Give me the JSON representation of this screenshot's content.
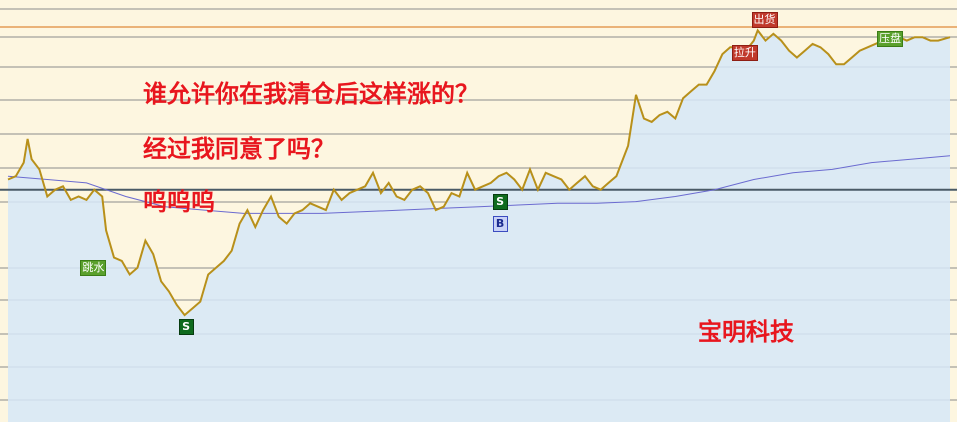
{
  "captions": {
    "line1": "谁允许你在我清仓后这样涨的？",
    "line2": "经过我同意了吗？",
    "line3": "呜呜呜",
    "watermark": "宝明科技"
  },
  "colors": {
    "background_upper": "#fdf6e0",
    "area_fill": "#d6e8f7",
    "price_line": "#b8901a",
    "avg_line": "#6b6bd0",
    "grid": "#8c8c8c",
    "ref_line": "#4a5a66",
    "top_line": "#e08a3a",
    "caption": "#e8161e"
  },
  "chart_data": {
    "type": "line",
    "title": "",
    "xlabel": "",
    "ylabel": "",
    "x_range": [
      0,
      240
    ],
    "ylim": [
      0,
      100
    ],
    "grid": true,
    "reference_level": 52,
    "series": [
      {
        "points": [
          [
            0,
            55
          ],
          [
            2,
            56
          ],
          [
            4,
            60
          ],
          [
            5,
            67
          ],
          [
            6,
            61
          ],
          [
            8,
            58
          ],
          [
            10,
            50
          ],
          [
            12,
            52
          ],
          [
            14,
            53
          ],
          [
            16,
            49
          ],
          [
            18,
            50
          ],
          [
            20,
            49
          ],
          [
            22,
            52
          ],
          [
            24,
            50
          ],
          [
            25,
            40
          ],
          [
            27,
            32
          ],
          [
            29,
            31
          ],
          [
            31,
            27
          ],
          [
            33,
            29
          ],
          [
            35,
            37
          ],
          [
            37,
            33
          ],
          [
            39,
            25
          ],
          [
            41,
            22
          ],
          [
            43,
            18
          ],
          [
            45,
            15
          ],
          [
            47,
            17
          ],
          [
            49,
            19
          ],
          [
            51,
            27
          ],
          [
            53,
            29
          ],
          [
            55,
            31
          ],
          [
            57,
            34
          ],
          [
            59,
            42
          ],
          [
            61,
            46
          ],
          [
            63,
            41
          ],
          [
            65,
            46
          ],
          [
            67,
            50
          ],
          [
            69,
            44
          ],
          [
            71,
            42
          ],
          [
            73,
            45
          ],
          [
            75,
            46
          ],
          [
            77,
            48
          ],
          [
            79,
            47
          ],
          [
            81,
            46
          ],
          [
            83,
            52
          ],
          [
            85,
            49
          ],
          [
            87,
            51
          ],
          [
            89,
            52
          ],
          [
            91,
            53
          ],
          [
            93,
            57
          ],
          [
            95,
            51
          ],
          [
            97,
            54
          ],
          [
            99,
            50
          ],
          [
            101,
            49
          ],
          [
            103,
            52
          ],
          [
            105,
            53
          ],
          [
            107,
            51
          ],
          [
            109,
            46
          ],
          [
            111,
            47
          ],
          [
            113,
            51
          ],
          [
            115,
            50
          ],
          [
            117,
            57
          ],
          [
            119,
            52
          ],
          [
            121,
            53
          ],
          [
            123,
            54
          ],
          [
            125,
            56
          ],
          [
            127,
            57
          ],
          [
            129,
            55
          ],
          [
            131,
            52
          ],
          [
            133,
            58
          ],
          [
            135,
            52
          ],
          [
            137,
            57
          ],
          [
            139,
            56
          ],
          [
            141,
            55
          ],
          [
            143,
            52
          ],
          [
            145,
            54
          ],
          [
            147,
            56
          ],
          [
            149,
            53
          ],
          [
            151,
            52
          ],
          [
            153,
            54
          ],
          [
            155,
            56
          ],
          [
            156,
            59
          ],
          [
            158,
            65
          ],
          [
            160,
            80
          ],
          [
            162,
            73
          ],
          [
            164,
            72
          ],
          [
            166,
            74
          ],
          [
            168,
            75
          ],
          [
            170,
            73
          ],
          [
            172,
            79
          ],
          [
            174,
            81
          ],
          [
            176,
            83
          ],
          [
            178,
            83
          ],
          [
            180,
            87
          ],
          [
            182,
            92
          ],
          [
            184,
            94
          ],
          [
            186,
            94
          ],
          [
            188,
            93
          ],
          [
            190,
            96
          ],
          [
            191,
            99
          ],
          [
            193,
            96
          ],
          [
            195,
            98
          ],
          [
            197,
            96
          ],
          [
            199,
            93
          ],
          [
            201,
            91
          ],
          [
            203,
            93
          ],
          [
            205,
            95
          ],
          [
            207,
            94
          ],
          [
            209,
            92
          ],
          [
            211,
            89
          ],
          [
            213,
            89
          ],
          [
            215,
            91
          ],
          [
            217,
            93
          ],
          [
            219,
            94
          ],
          [
            221,
            95
          ],
          [
            223,
            96
          ],
          [
            225,
            97
          ],
          [
            227,
            97
          ],
          [
            229,
            96
          ],
          [
            231,
            97
          ],
          [
            233,
            97
          ],
          [
            235,
            96
          ],
          [
            237,
            96
          ],
          [
            240,
            97
          ]
        ]
      },
      {
        "points": [
          [
            0,
            56
          ],
          [
            10,
            55
          ],
          [
            20,
            54
          ],
          [
            30,
            50
          ],
          [
            40,
            47
          ],
          [
            50,
            46
          ],
          [
            60,
            45
          ],
          [
            70,
            45
          ],
          [
            80,
            45
          ],
          [
            90,
            45.5
          ],
          [
            100,
            46
          ],
          [
            110,
            46.5
          ],
          [
            120,
            47
          ],
          [
            130,
            47.5
          ],
          [
            140,
            48
          ],
          [
            150,
            48
          ],
          [
            160,
            48.5
          ],
          [
            170,
            50
          ],
          [
            180,
            52
          ],
          [
            190,
            55
          ],
          [
            200,
            57
          ],
          [
            210,
            58
          ],
          [
            220,
            60
          ],
          [
            230,
            61
          ],
          [
            240,
            62
          ]
        ]
      }
    ],
    "annotations": [
      {
        "label": "跳水",
        "x": 22,
        "y": 32
      },
      {
        "label": "S",
        "x": 45,
        "y": 15
      },
      {
        "label": "S",
        "x": 125,
        "y": 52
      },
      {
        "label": "B",
        "x": 125,
        "y": 45.5
      },
      {
        "label": "拉升",
        "x": 188,
        "y": 94
      },
      {
        "label": "出货",
        "x": 193,
        "y": 99
      },
      {
        "label": "压盘",
        "x": 225,
        "y": 97
      }
    ]
  }
}
